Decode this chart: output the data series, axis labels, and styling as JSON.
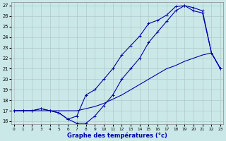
{
  "xlabel": "Graphe des températures (°c)",
  "bg_color": "#cbe8e8",
  "grid_color": "#b0c8c8",
  "line_color": "#0000aa",
  "xmin": 0,
  "xmax": 23,
  "ymin": 16,
  "ymax": 27,
  "hours": [
    0,
    1,
    2,
    3,
    4,
    5,
    6,
    7,
    8,
    9,
    10,
    11,
    12,
    13,
    14,
    15,
    16,
    17,
    18,
    19,
    20,
    21,
    22,
    23
  ],
  "line_upper": [
    17,
    17,
    17,
    17.2,
    17,
    16.8,
    16.2,
    16.5,
    18.5,
    19,
    20,
    21,
    22.3,
    23.2,
    24.1,
    25.3,
    25.6,
    26.1,
    26.9,
    27.0,
    26.8,
    26.5,
    22.5,
    21.0
  ],
  "line_lower": [
    17,
    17,
    17,
    17.2,
    17,
    16.8,
    16.2,
    15.8,
    15.8,
    16.5,
    17.5,
    18.5,
    20,
    21,
    22,
    23.5,
    24.5,
    25.5,
    26.5,
    27.0,
    26.5,
    26.3,
    22.5,
    21.0
  ],
  "line_diag": [
    17,
    17,
    17,
    17,
    17,
    17,
    17,
    17,
    17.2,
    17.4,
    17.7,
    18.1,
    18.5,
    19.0,
    19.5,
    20.0,
    20.5,
    21.0,
    21.3,
    21.7,
    22.0,
    22.3,
    22.5,
    21.0
  ]
}
